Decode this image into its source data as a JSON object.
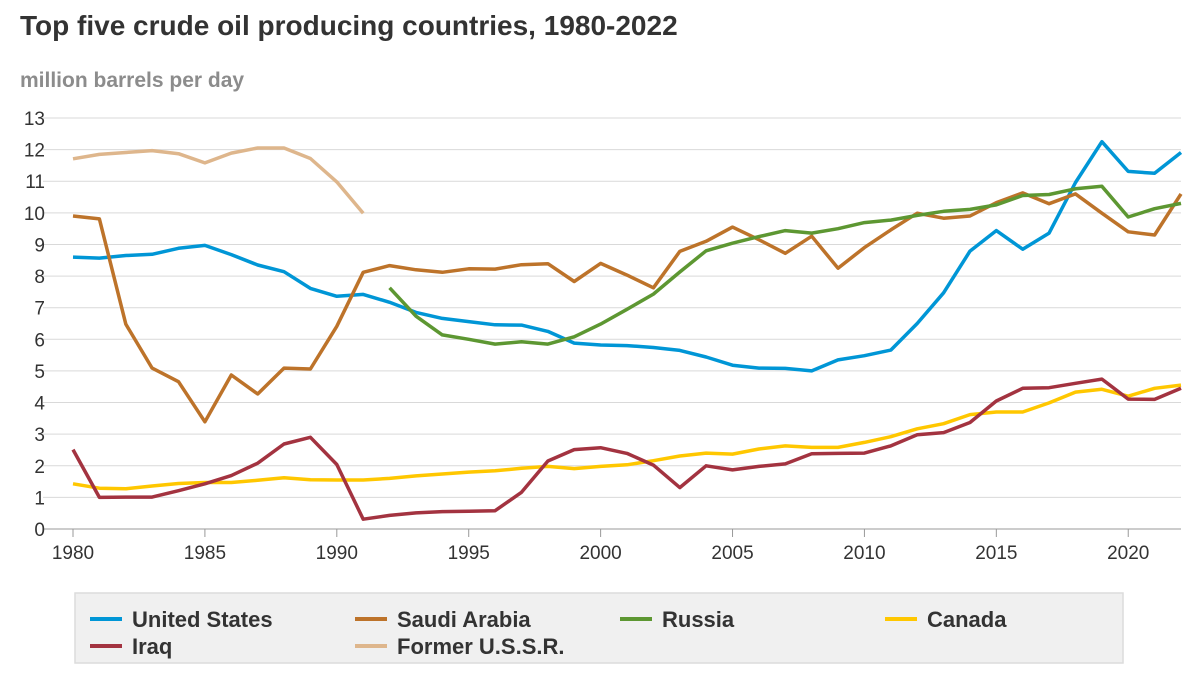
{
  "chart_data": {
    "type": "line",
    "title": "Top five crude oil producing countries, 1980-2022",
    "ylabel": "million barrels per day",
    "xlabel": "",
    "xlim": [
      1980,
      2022
    ],
    "ylim": [
      0,
      13
    ],
    "yticks": [
      "0",
      "1",
      "2",
      "3",
      "4",
      "5",
      "6",
      "7",
      "8",
      "9",
      "10",
      "11",
      "12",
      "13"
    ],
    "xticks": [
      "1980",
      "1985",
      "1990",
      "1995",
      "2000",
      "2005",
      "2010",
      "2015",
      "2020"
    ],
    "grid": true,
    "legend_position": "bottom",
    "series": [
      {
        "name": "United States",
        "color": "#0096d6",
        "start": 1980,
        "values": [
          8.6,
          8.57,
          8.65,
          8.69,
          8.88,
          8.97,
          8.68,
          8.35,
          8.14,
          7.61,
          7.36,
          7.42,
          7.17,
          6.85,
          6.66,
          6.56,
          6.46,
          6.45,
          6.25,
          5.88,
          5.82,
          5.8,
          5.74,
          5.65,
          5.44,
          5.18,
          5.09,
          5.08,
          5.0,
          5.35,
          5.48,
          5.66,
          6.5,
          7.47,
          8.79,
          9.44,
          8.85,
          9.36,
          10.96,
          12.25,
          11.31,
          11.25,
          11.91
        ]
      },
      {
        "name": "Saudi Arabia",
        "color": "#bd732a",
        "start": 1980,
        "values": [
          9.9,
          9.81,
          6.48,
          5.09,
          4.66,
          3.39,
          4.87,
          4.27,
          5.09,
          5.06,
          6.41,
          8.12,
          8.33,
          8.2,
          8.12,
          8.23,
          8.22,
          8.36,
          8.39,
          7.83,
          8.4,
          8.03,
          7.63,
          8.78,
          9.1,
          9.55,
          9.15,
          8.72,
          9.26,
          8.25,
          8.9,
          9.46,
          9.99,
          9.83,
          9.9,
          10.32,
          10.63,
          10.29,
          10.6,
          9.99,
          9.4,
          9.3,
          10.6
        ]
      },
      {
        "name": "Russia",
        "color": "#5d9732",
        "start": 1992,
        "values": [
          7.63,
          6.73,
          6.14,
          6.0,
          5.85,
          5.92,
          5.85,
          6.08,
          6.48,
          6.95,
          7.43,
          8.13,
          8.8,
          9.04,
          9.25,
          9.44,
          9.36,
          9.5,
          9.69,
          9.77,
          9.92,
          10.05,
          10.11,
          10.25,
          10.55,
          10.58,
          10.76,
          10.84,
          9.87,
          10.13,
          10.3
        ]
      },
      {
        "name": "Canada",
        "color": "#ffc700",
        "start": 1980,
        "values": [
          1.43,
          1.29,
          1.27,
          1.36,
          1.44,
          1.47,
          1.47,
          1.54,
          1.62,
          1.56,
          1.55,
          1.55,
          1.6,
          1.68,
          1.74,
          1.8,
          1.84,
          1.92,
          1.98,
          1.91,
          1.98,
          2.03,
          2.16,
          2.31,
          2.4,
          2.37,
          2.53,
          2.63,
          2.58,
          2.58,
          2.74,
          2.92,
          3.17,
          3.33,
          3.62,
          3.7,
          3.7,
          3.99,
          4.33,
          4.42,
          4.2,
          4.45,
          4.55
        ]
      },
      {
        "name": "Iraq",
        "color": "#a33340",
        "start": 1980,
        "values": [
          2.51,
          1.0,
          1.01,
          1.01,
          1.21,
          1.43,
          1.69,
          2.08,
          2.69,
          2.9,
          2.04,
          0.31,
          0.43,
          0.51,
          0.55,
          0.56,
          0.58,
          1.16,
          2.15,
          2.51,
          2.57,
          2.39,
          2.02,
          1.31,
          2.0,
          1.87,
          1.98,
          2.06,
          2.38,
          2.39,
          2.4,
          2.63,
          2.98,
          3.05,
          3.37,
          4.05,
          4.45,
          4.47,
          4.61,
          4.74,
          4.11,
          4.1,
          4.45
        ]
      },
      {
        "name": "Former U.S.S.R.",
        "color": "#deb68c",
        "start": 1980,
        "values": [
          11.71,
          11.85,
          11.91,
          11.97,
          11.87,
          11.58,
          11.89,
          12.05,
          12.05,
          11.72,
          10.98,
          9.99
        ]
      }
    ]
  }
}
